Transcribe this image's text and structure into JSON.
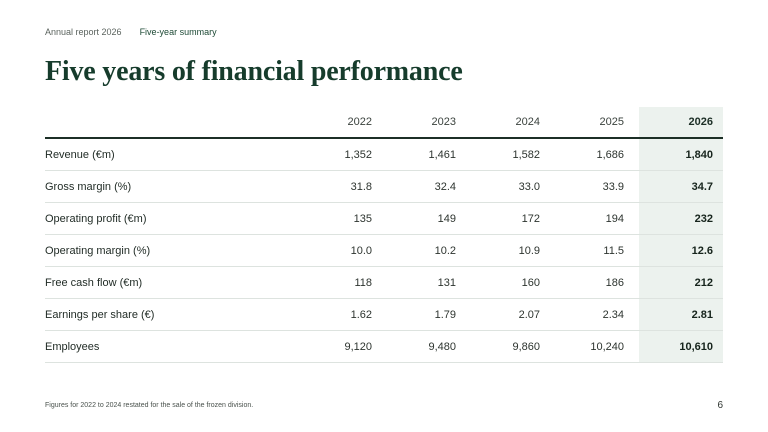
{
  "header": {
    "crumb": "Annual report 2026",
    "section": "Five-year summary"
  },
  "title": "Five years of financial performance",
  "table": {
    "years": [
      "2022",
      "2023",
      "2024",
      "2025",
      "2026"
    ],
    "highlight_year": "2026",
    "rows": [
      {
        "label": "Revenue (€m)",
        "values": [
          "1,352",
          "1,461",
          "1,582",
          "1,686",
          "1,840"
        ]
      },
      {
        "label": "Gross margin (%)",
        "values": [
          "31.8",
          "32.4",
          "33.0",
          "33.9",
          "34.7"
        ]
      },
      {
        "label": "Operating profit (€m)",
        "values": [
          "135",
          "149",
          "172",
          "194",
          "232"
        ]
      },
      {
        "label": "Operating margin (%)",
        "values": [
          "10.0",
          "10.2",
          "10.9",
          "11.5",
          "12.6"
        ]
      },
      {
        "label": "Free cash flow (€m)",
        "values": [
          "118",
          "131",
          "160",
          "186",
          "212"
        ]
      },
      {
        "label": "Earnings per share (€)",
        "values": [
          "1.62",
          "1.79",
          "2.07",
          "2.34",
          "2.81"
        ]
      },
      {
        "label": "Employees",
        "values": [
          "9,120",
          "9,480",
          "9,860",
          "10,240",
          "10,610"
        ]
      }
    ]
  },
  "footnote": "Figures for 2022 to 2024 restated for the sale of the frozen division.",
  "page_number": "6",
  "colors": {
    "title": "#163c2c",
    "highlight_column_bg": "#ecf2ee",
    "active_section": "#1e4a36"
  }
}
